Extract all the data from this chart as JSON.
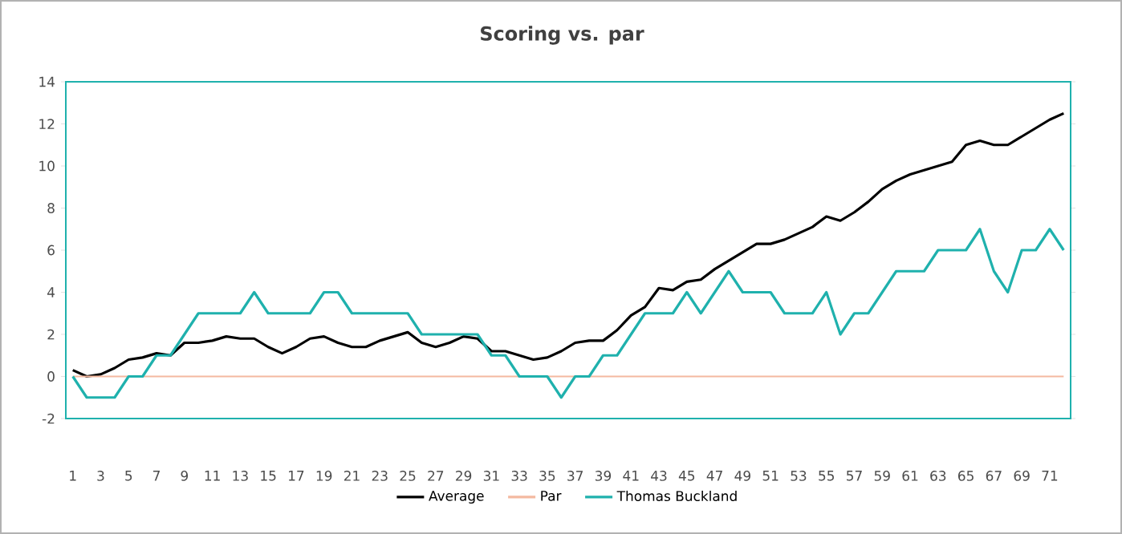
{
  "chart_data": {
    "type": "line",
    "title": "Scoring vs. par",
    "categories": [
      "1",
      null,
      "3",
      null,
      "5",
      null,
      "7",
      null,
      "9",
      null,
      "11",
      null,
      "13",
      null,
      "15",
      null,
      "17",
      null,
      "19",
      null,
      "21",
      null,
      "23",
      null,
      "25",
      null,
      "27",
      null,
      "29",
      null,
      "31",
      null,
      "33",
      null,
      "35",
      null,
      "37",
      null,
      "39",
      null,
      "41",
      null,
      "43",
      null,
      "45",
      null,
      "47",
      null,
      "49",
      null,
      "51",
      null,
      "53",
      null,
      "55",
      null,
      "57",
      null,
      "59",
      null,
      "61",
      null,
      "63",
      null,
      "65",
      null,
      "67",
      null,
      "69",
      null,
      "71",
      null
    ],
    "series": [
      {
        "name": "Average",
        "color": "#000000",
        "values": [
          0.3,
          0,
          0.1,
          0.4,
          0.8,
          0.9,
          1.1,
          1.0,
          1.6,
          1.6,
          1.7,
          1.9,
          1.8,
          1.8,
          1.4,
          1.1,
          1.4,
          1.8,
          1.9,
          1.6,
          1.4,
          1.4,
          1.7,
          1.9,
          2.1,
          1.6,
          1.4,
          1.6,
          1.9,
          1.8,
          1.2,
          1.2,
          1.0,
          0.8,
          0.9,
          1.2,
          1.6,
          1.7,
          1.7,
          2.2,
          2.9,
          3.3,
          4.2,
          4.1,
          4.5,
          4.6,
          5.1,
          5.5,
          5.9,
          6.3,
          6.3,
          6.5,
          6.8,
          7.1,
          7.6,
          7.4,
          7.8,
          8.3,
          8.9,
          9.3,
          9.6,
          9.8,
          10.0,
          10.2,
          11.0,
          11.2,
          11.0,
          11.0,
          11.4,
          11.8,
          12.2,
          12.5
        ]
      },
      {
        "name": "Par",
        "color": "#f4b9a0",
        "values": [
          0,
          0,
          0,
          0,
          0,
          0,
          0,
          0,
          0,
          0,
          0,
          0,
          0,
          0,
          0,
          0,
          0,
          0,
          0,
          0,
          0,
          0,
          0,
          0,
          0,
          0,
          0,
          0,
          0,
          0,
          0,
          0,
          0,
          0,
          0,
          0,
          0,
          0,
          0,
          0,
          0,
          0,
          0,
          0,
          0,
          0,
          0,
          0,
          0,
          0,
          0,
          0,
          0,
          0,
          0,
          0,
          0,
          0,
          0,
          0,
          0,
          0,
          0,
          0,
          0,
          0,
          0,
          0,
          0,
          0,
          0,
          0
        ]
      },
      {
        "name": "Thomas Buckland",
        "color": "#1fb1ad",
        "values": [
          0,
          -1,
          -1,
          -1,
          0,
          0,
          1,
          1,
          2,
          3,
          3,
          3,
          3,
          4,
          3,
          3,
          3,
          3,
          4,
          4,
          3,
          3,
          3,
          3,
          3,
          2,
          2,
          2,
          2,
          2,
          1,
          1,
          0,
          0,
          0,
          -1,
          0,
          0,
          1,
          1,
          2,
          3,
          3,
          3,
          4,
          3,
          4,
          5,
          4,
          4,
          4,
          3,
          3,
          3,
          4,
          2,
          3,
          3,
          4,
          5,
          5,
          5,
          6,
          6,
          6,
          7,
          5,
          4,
          6,
          6,
          7,
          6
        ]
      }
    ],
    "ylim": [
      -2,
      14
    ],
    "yticks": [
      -2,
      0,
      2,
      4,
      6,
      8,
      10,
      12,
      14
    ],
    "legend": "bottom"
  }
}
